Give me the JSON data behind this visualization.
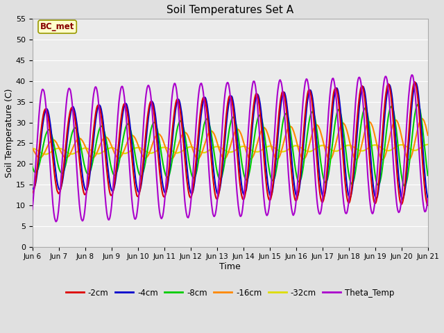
{
  "title": "Soil Temperatures Set A",
  "xlabel": "Time",
  "ylabel": "Soil Temperature (C)",
  "annotation": "BC_met",
  "ylim": [
    0,
    55
  ],
  "yticks": [
    0,
    5,
    10,
    15,
    20,
    25,
    30,
    35,
    40,
    45,
    50,
    55
  ],
  "series_colors": {
    "-2cm": "#dd0000",
    "-4cm": "#0000cc",
    "-8cm": "#00cc00",
    "-16cm": "#ff8800",
    "-32cm": "#dddd00",
    "Theta_Temp": "#aa00cc"
  },
  "bg_color": "#e0e0e0",
  "plot_bg_color": "#ebebeb",
  "grid_color": "#ffffff",
  "xticklabels": [
    "Jun 6",
    "Jun 7",
    "Jun 8",
    "Jun 9",
    "Jun 10",
    "Jun 11",
    "Jun 12",
    "Jun 13",
    "Jun 14",
    "Jun 15",
    "Jun 16",
    "Jun 17",
    "Jun 18",
    "Jun 19",
    "Jun 20",
    "Jun 21"
  ],
  "n_days": 15,
  "pts_per_day": 96
}
